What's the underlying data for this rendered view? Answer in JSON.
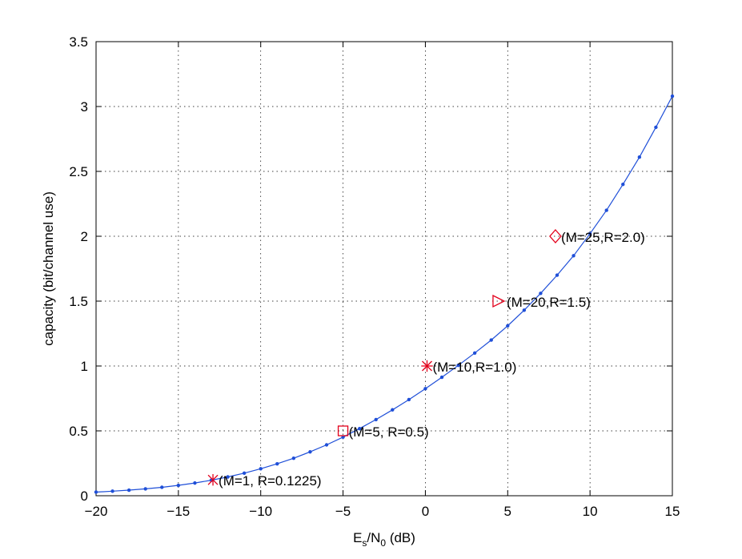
{
  "chart_data": {
    "type": "line",
    "xlabel": {
      "main": "E",
      "sub1": "s",
      "mid": "/N",
      "sub2": "0",
      "tail": " (dB)"
    },
    "ylabel": "capacity (bit/channel use)",
    "xlim": [
      -20,
      15
    ],
    "ylim": [
      0,
      3.5
    ],
    "xticks": [
      -20,
      -15,
      -10,
      -5,
      0,
      5,
      10,
      15
    ],
    "xtick_labels": [
      "−20",
      "−15",
      "−10",
      "−5",
      "0",
      "5",
      "10",
      "15"
    ],
    "yticks": [
      0,
      0.5,
      1,
      1.5,
      2,
      2.5,
      3,
      3.5
    ],
    "ytick_labels": [
      "0",
      "0.5",
      "1",
      "1.5",
      "2",
      "2.5",
      "3",
      "3.5"
    ],
    "grid": true,
    "line_color": "#1f4fd8",
    "marker_color": "#e3001b",
    "series": [
      {
        "x": [
          -20,
          -19,
          -18,
          -17,
          -16,
          -15,
          -14,
          -13,
          -12,
          -11,
          -10,
          -9,
          -8,
          -7,
          -6,
          -5,
          -4,
          -3,
          -2,
          -1,
          0,
          1,
          2,
          3,
          4,
          5,
          6,
          7,
          8,
          9,
          10,
          11,
          12,
          13,
          14,
          15
        ],
        "y": [
          0.028,
          0.035,
          0.043,
          0.053,
          0.065,
          0.08,
          0.098,
          0.12,
          0.145,
          0.174,
          0.208,
          0.246,
          0.289,
          0.338,
          0.392,
          0.452,
          0.517,
          0.587,
          0.662,
          0.741,
          0.825,
          0.913,
          1.005,
          1.1,
          1.2,
          1.31,
          1.43,
          1.56,
          1.7,
          1.85,
          2.02,
          2.2,
          2.4,
          2.61,
          2.84,
          3.08
        ]
      }
    ],
    "annotations": [
      {
        "x": -12.9,
        "y": 0.1225,
        "marker": "star",
        "label": "(M=1, R=0.1225)"
      },
      {
        "x": -5.0,
        "y": 0.5,
        "marker": "square",
        "label": "(M=5, R=0.5)"
      },
      {
        "x": 0.1,
        "y": 1.0,
        "marker": "asterisk",
        "label": "(M=10,R=1.0)"
      },
      {
        "x": 4.4,
        "y": 1.5,
        "marker": "triangle-right",
        "label": "(M=20,R=1.5)"
      },
      {
        "x": 7.9,
        "y": 2.0,
        "marker": "diamond",
        "label": "(M=25,R=2.0)"
      }
    ]
  }
}
